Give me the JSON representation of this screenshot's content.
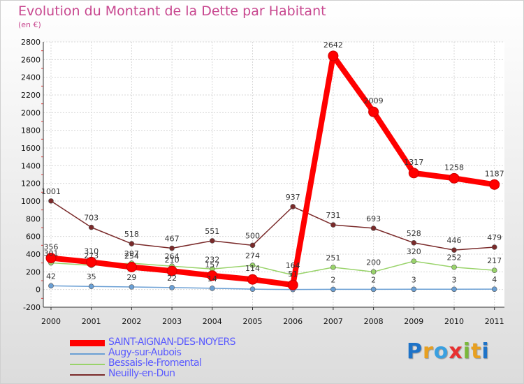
{
  "title": "Evolution du Montant de la Dette par Habitant",
  "subtitle": "(en €)",
  "logo": {
    "text": "Proxiti",
    "letter_colors": [
      "#1e73c8",
      "#e8a020",
      "#3aa0e0",
      "#e83030",
      "#7ab83a",
      "#e8a020",
      "#1e73c8"
    ]
  },
  "chart_data": {
    "type": "line",
    "x": [
      "2000",
      "2001",
      "2002",
      "2003",
      "2004",
      "2005",
      "2006",
      "2007",
      "2008",
      "2009",
      "2010",
      "2011"
    ],
    "ylim": [
      -200,
      2800
    ],
    "yticks": [
      "-200",
      "0",
      "200",
      "400",
      "600",
      "800",
      "1000",
      "1200",
      "1400",
      "1600",
      "1800",
      "2000",
      "2200",
      "2400",
      "2600",
      "2800"
    ],
    "grid": true,
    "series": [
      {
        "name": "SAINT-AIGNAN-DES-NOYERS",
        "color": "#ff0000",
        "values": [
          356,
          310,
          254,
          210,
          157,
          114,
          51,
          2642,
          2009,
          1317,
          1258,
          1187
        ],
        "labels": [
          "356",
          "310",
          "254",
          "210",
          "157",
          "114",
          "51",
          "2642",
          "2009",
          "1317",
          "1258",
          "1187"
        ]
      },
      {
        "name": "Augy-sur-Aubois",
        "color": "#6a9fd4",
        "values": [
          42,
          35,
          29,
          22,
          14,
          4,
          0,
          2,
          2,
          3,
          3,
          4
        ],
        "labels": [
          "42",
          "35",
          "29",
          "22",
          "14",
          "",
          "",
          "2",
          "2",
          "3",
          "3",
          "4"
        ]
      },
      {
        "name": "Bessais-le-Fromental",
        "color": "#99d36a",
        "values": [
          301,
          273,
          297,
          264,
          232,
          274,
          164,
          251,
          200,
          320,
          252,
          217
        ],
        "labels": [
          "301",
          "273",
          "297",
          "264",
          "232",
          "274",
          "164",
          "251",
          "200",
          "320",
          "252",
          "217"
        ]
      },
      {
        "name": "Neuilly-en-Dun",
        "color": "#7a2a2a",
        "values": [
          1001,
          703,
          518,
          467,
          551,
          500,
          937,
          731,
          693,
          528,
          446,
          479
        ],
        "labels": [
          "1001",
          "703",
          "518",
          "467",
          "551",
          "500",
          "937",
          "731",
          "693",
          "528",
          "446",
          "479"
        ]
      }
    ]
  }
}
